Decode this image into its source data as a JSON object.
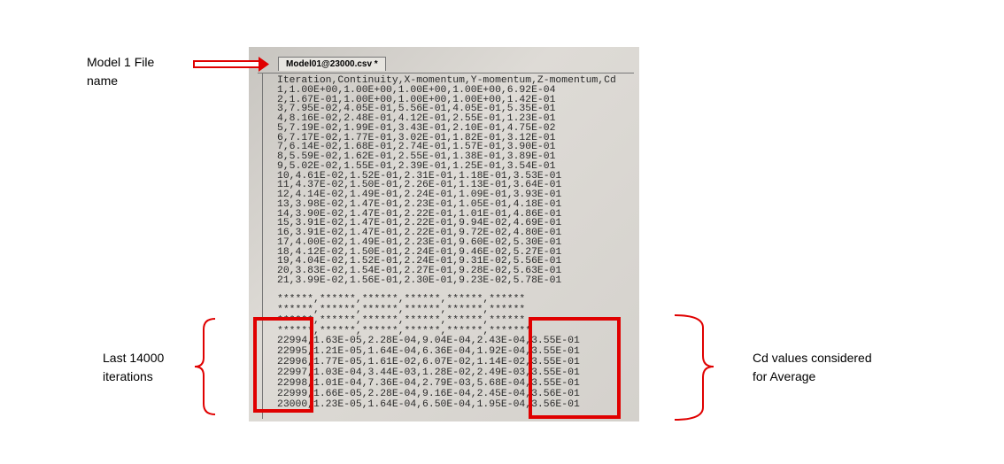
{
  "annotations": {
    "file_name": "Model 1 File\nname",
    "iterations": "Last 14000\niterations",
    "cd_values": "Cd values considered\nfor Average"
  },
  "tab_title": "Model01@23000.csv *",
  "lines": [
    "Iteration,Continuity,X-momentum,Y-momentum,Z-momentum,Cd",
    "1,1.00E+00,1.00E+00,1.00E+00,1.00E+00,6.92E-04",
    "2,1.67E-01,1.00E+00,1.00E+00,1.00E+00,1.42E-01",
    "3,7.95E-02,4.05E-01,5.56E-01,4.05E-01,5.35E-01",
    "4,8.16E-02,2.48E-01,4.12E-01,2.55E-01,1.23E-01",
    "5,7.19E-02,1.99E-01,3.43E-01,2.10E-01,4.75E-02",
    "6,7.17E-02,1.77E-01,3.02E-01,1.82E-01,3.12E-01",
    "7,6.14E-02,1.68E-01,2.74E-01,1.57E-01,3.90E-01",
    "8,5.59E-02,1.62E-01,2.55E-01,1.38E-01,3.89E-01",
    "9,5.02E-02,1.55E-01,2.39E-01,1.25E-01,3.54E-01",
    "10,4.61E-02,1.52E-01,2.31E-01,1.18E-01,3.53E-01",
    "11,4.37E-02,1.50E-01,2.26E-01,1.13E-01,3.64E-01",
    "12,4.14E-02,1.49E-01,2.24E-01,1.09E-01,3.93E-01",
    "13,3.98E-02,1.47E-01,2.23E-01,1.05E-01,4.18E-01",
    "14,3.90E-02,1.47E-01,2.22E-01,1.01E-01,4.86E-01",
    "15,3.91E-02,1.47E-01,2.22E-01,9.94E-02,4.69E-01",
    "16,3.91E-02,1.47E-01,2.22E-01,9.72E-02,4.80E-01",
    "17,4.00E-02,1.49E-01,2.23E-01,9.60E-02,5.30E-01",
    "18,4.12E-02,1.50E-01,2.24E-01,9.46E-02,5.27E-01",
    "19,4.04E-02,1.52E-01,2.24E-01,9.31E-02,5.56E-01",
    "20,3.83E-02,1.54E-01,2.27E-01,9.28E-02,5.63E-01",
    "21,3.99E-02,1.56E-01,2.30E-01,9.23E-02,5.78E-01",
    "******,******,******,******,******,******",
    "******,******,******,******,******,******",
    "******,******,******,******,******,******",
    "******,******,******,******,******,*******",
    "22994,1.63E-05,2.28E-04,9.04E-04,2.43E-04,3.55E-01",
    "22995,1.21E-05,1.64E-04,6.36E-04,1.92E-04,3.55E-01",
    "22996,1.77E-05,1.61E-02,6.07E-02,1.14E-02,3.55E-01",
    "22997,1.03E-04,3.44E-03,1.28E-02,2.49E-03,3.55E-01",
    "22998,1.01E-04,7.36E-04,2.79E-03,5.68E-04,3.55E-01",
    "22999,1.66E-05,2.28E-04,9.16E-04,2.45E-04,3.56E-01",
    "23000,1.23E-05,1.64E-04,6.50E-04,1.95E-04,3.56E-01"
  ]
}
